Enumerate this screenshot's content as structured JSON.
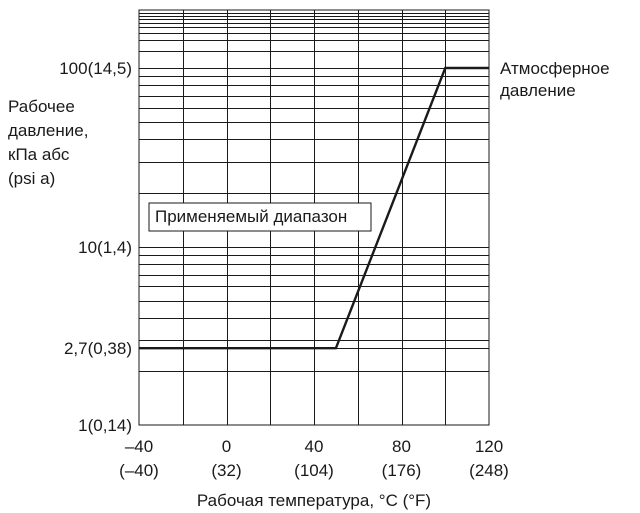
{
  "chart_data": {
    "type": "line",
    "y_scale": "log",
    "xlim": [
      -40,
      120
    ],
    "ylim": [
      1,
      1000
    ],
    "x_ticks": [
      {
        "value": -40,
        "label": "–40",
        "sublabel": "(–40)"
      },
      {
        "value": 0,
        "label": "0",
        "sublabel": "(32)"
      },
      {
        "value": 40,
        "label": "40",
        "sublabel": "(104)"
      },
      {
        "value": 80,
        "label": "80",
        "sublabel": "(176)"
      },
      {
        "value": 120,
        "label": "120",
        "sublabel": "(248)"
      }
    ],
    "y_ticks": [
      {
        "value": 1,
        "label": "1(0,14)"
      },
      {
        "value": 2.7,
        "label": "2,7(0,38)"
      },
      {
        "value": 10,
        "label": "10(1,4)"
      },
      {
        "value": 100,
        "label": "100(14,5)"
      }
    ],
    "ylabel_lines": [
      "Рабочее",
      "давление,",
      "кПа абс",
      "(psi a)"
    ],
    "xlabel": "Рабочая температура, °C (°F)",
    "series": [
      {
        "x": [
          -40,
          50,
          100,
          120
        ],
        "y": [
          2.7,
          2.7,
          100,
          100
        ]
      }
    ],
    "annotations": {
      "range_box": "Применяемый диапазон",
      "atm_lines": [
        "Атмосферное",
        "давление"
      ]
    },
    "grid": true,
    "colors": {
      "line": "#1a1a1a",
      "background": "#ffffff"
    }
  }
}
